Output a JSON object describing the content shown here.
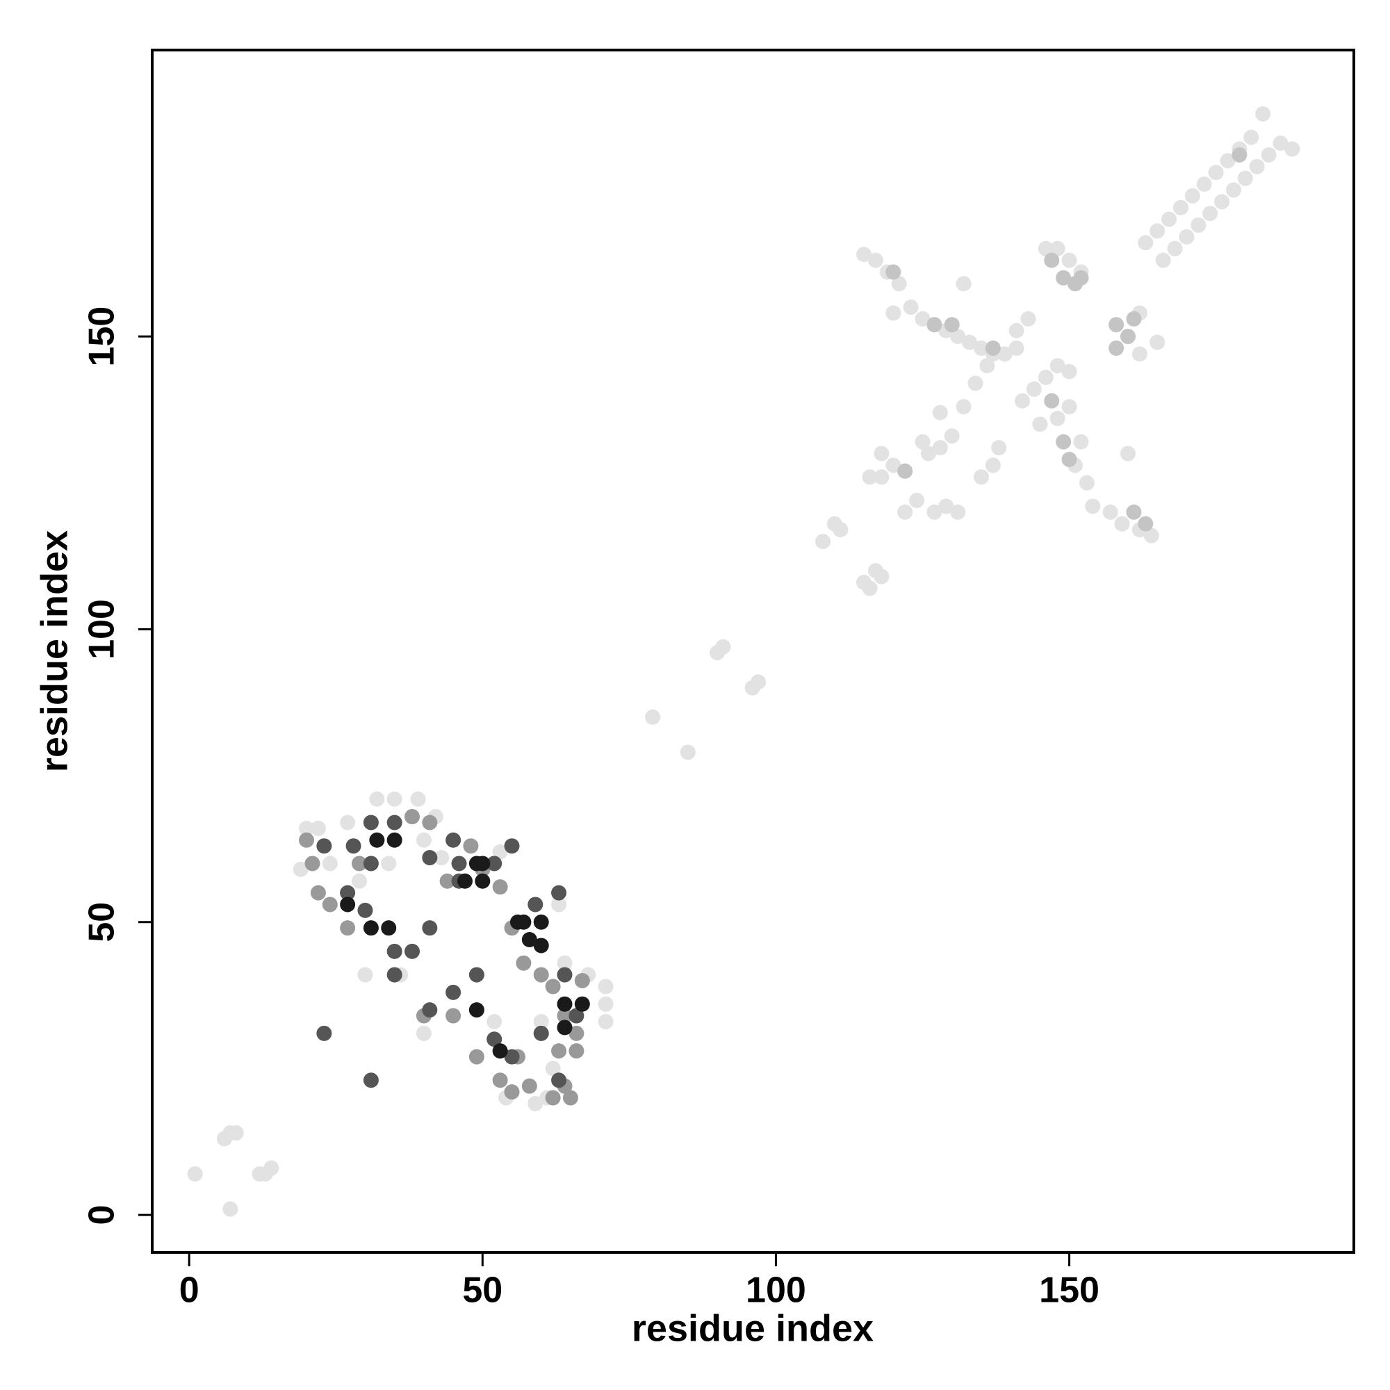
{
  "chart_data": {
    "type": "scatter",
    "x_label": "residue index",
    "y_label": "residue index",
    "xlim": [
      -6.3,
      198.5
    ],
    "ylim": [
      -6.4,
      198.9
    ],
    "xticks": [
      0,
      50,
      100,
      150
    ],
    "yticks": [
      0,
      50,
      100,
      150
    ],
    "series": [
      {
        "color": "#e2e2e2",
        "x": [
          19,
          20,
          22,
          24,
          29,
          27,
          32,
          35,
          39,
          42,
          40,
          43,
          34,
          30,
          36,
          40,
          52,
          53,
          60,
          62,
          63,
          59,
          61,
          54,
          64,
          68,
          71,
          71,
          71,
          1,
          7,
          6,
          7,
          8,
          12,
          13,
          14,
          79,
          85,
          90,
          91,
          97,
          96,
          163,
          165,
          167,
          169,
          171,
          173,
          175,
          177,
          179,
          181,
          183,
          188,
          166,
          168,
          170,
          172,
          174,
          176,
          178,
          180,
          182,
          184,
          186,
          115,
          117,
          119,
          121,
          120,
          123,
          125,
          127,
          129,
          131,
          133,
          135,
          137,
          139,
          141,
          136,
          134,
          132,
          130,
          128,
          126,
          124,
          122,
          118,
          118,
          116,
          120,
          125,
          128,
          132,
          138,
          142,
          144,
          146,
          148,
          150,
          150,
          148,
          145,
          152,
          151,
          153,
          154,
          157,
          159,
          162,
          164,
          160,
          141,
          143,
          146,
          148,
          150,
          152,
          162,
          165,
          162,
          110,
          108,
          111,
          115,
          117,
          118,
          116,
          127,
          129,
          131,
          135,
          137
        ],
        "values": [
          59,
          66,
          66,
          60,
          57,
          67,
          71,
          71,
          71,
          68,
          64,
          61,
          60,
          41,
          41,
          31,
          33,
          62,
          33,
          25,
          53,
          19,
          20,
          20,
          43,
          41,
          39,
          36,
          33,
          7,
          1,
          13,
          14,
          14,
          7,
          7,
          8,
          85,
          79,
          96,
          97,
          91,
          90,
          166,
          168,
          170,
          172,
          174,
          176,
          178,
          180,
          182,
          184,
          188,
          182,
          163,
          165,
          167,
          169,
          171,
          173,
          175,
          177,
          179,
          181,
          183,
          164,
          163,
          161,
          159,
          154,
          155,
          153,
          152,
          151,
          150,
          149,
          148,
          147,
          147,
          148,
          145,
          142,
          138,
          133,
          131,
          130,
          122,
          120,
          126,
          130,
          126,
          128,
          132,
          137,
          159,
          131,
          139,
          141,
          143,
          145,
          144,
          138,
          136,
          135,
          132,
          128,
          125,
          121,
          120,
          118,
          117,
          116,
          130,
          151,
          153,
          165,
          165,
          163,
          161,
          154,
          149,
          147,
          118,
          115,
          117,
          108,
          110,
          109,
          107,
          120,
          121,
          120,
          126,
          128
        ]
      },
      {
        "color": "#c4c4c4",
        "x": [
          120,
          149,
          151,
          152,
          158,
          160,
          161,
          158,
          147,
          149,
          150,
          161,
          163,
          179,
          122,
          127,
          137,
          130,
          147
        ],
        "values": [
          161,
          160,
          159,
          160,
          152,
          150,
          153,
          148,
          139,
          132,
          129,
          120,
          118,
          181,
          127,
          152,
          148,
          152,
          163
        ]
      },
      {
        "color": "#999999",
        "x": [
          20,
          21,
          22,
          24,
          27,
          29,
          38,
          41,
          44,
          48,
          50,
          53,
          55,
          57,
          60,
          62,
          64,
          67,
          60,
          63,
          58,
          62,
          64,
          53,
          55,
          45,
          49,
          40,
          56,
          65,
          66,
          66
        ],
        "values": [
          64,
          60,
          55,
          53,
          49,
          60,
          68,
          67,
          57,
          63,
          59,
          56,
          49,
          43,
          41,
          39,
          34,
          40,
          31,
          28,
          22,
          20,
          22,
          23,
          21,
          34,
          27,
          34,
          27,
          20,
          28,
          31
        ]
      },
      {
        "color": "#555555",
        "x": [
          23,
          31,
          45,
          49,
          41,
          38,
          35,
          41,
          46,
          46,
          45,
          52,
          55,
          59,
          63,
          60,
          63,
          64,
          66,
          28,
          23,
          31,
          35,
          41,
          31,
          27,
          30,
          35,
          55,
          52
        ],
        "values": [
          31,
          23,
          38,
          41,
          49,
          45,
          41,
          35,
          60,
          57,
          64,
          60,
          63,
          53,
          55,
          31,
          23,
          41,
          34,
          63,
          63,
          67,
          67,
          61,
          60,
          55,
          52,
          45,
          27,
          30
        ]
      },
      {
        "color": "#1a1a1a",
        "x": [
          49,
          50,
          50,
          47,
          56,
          57,
          60,
          58,
          49,
          53,
          35,
          32,
          27,
          31,
          34,
          64,
          64,
          67,
          60
        ],
        "values": [
          60,
          60,
          57,
          57,
          50,
          50,
          50,
          47,
          35,
          28,
          64,
          64,
          53,
          49,
          49,
          32,
          36,
          36,
          46
        ]
      }
    ]
  }
}
